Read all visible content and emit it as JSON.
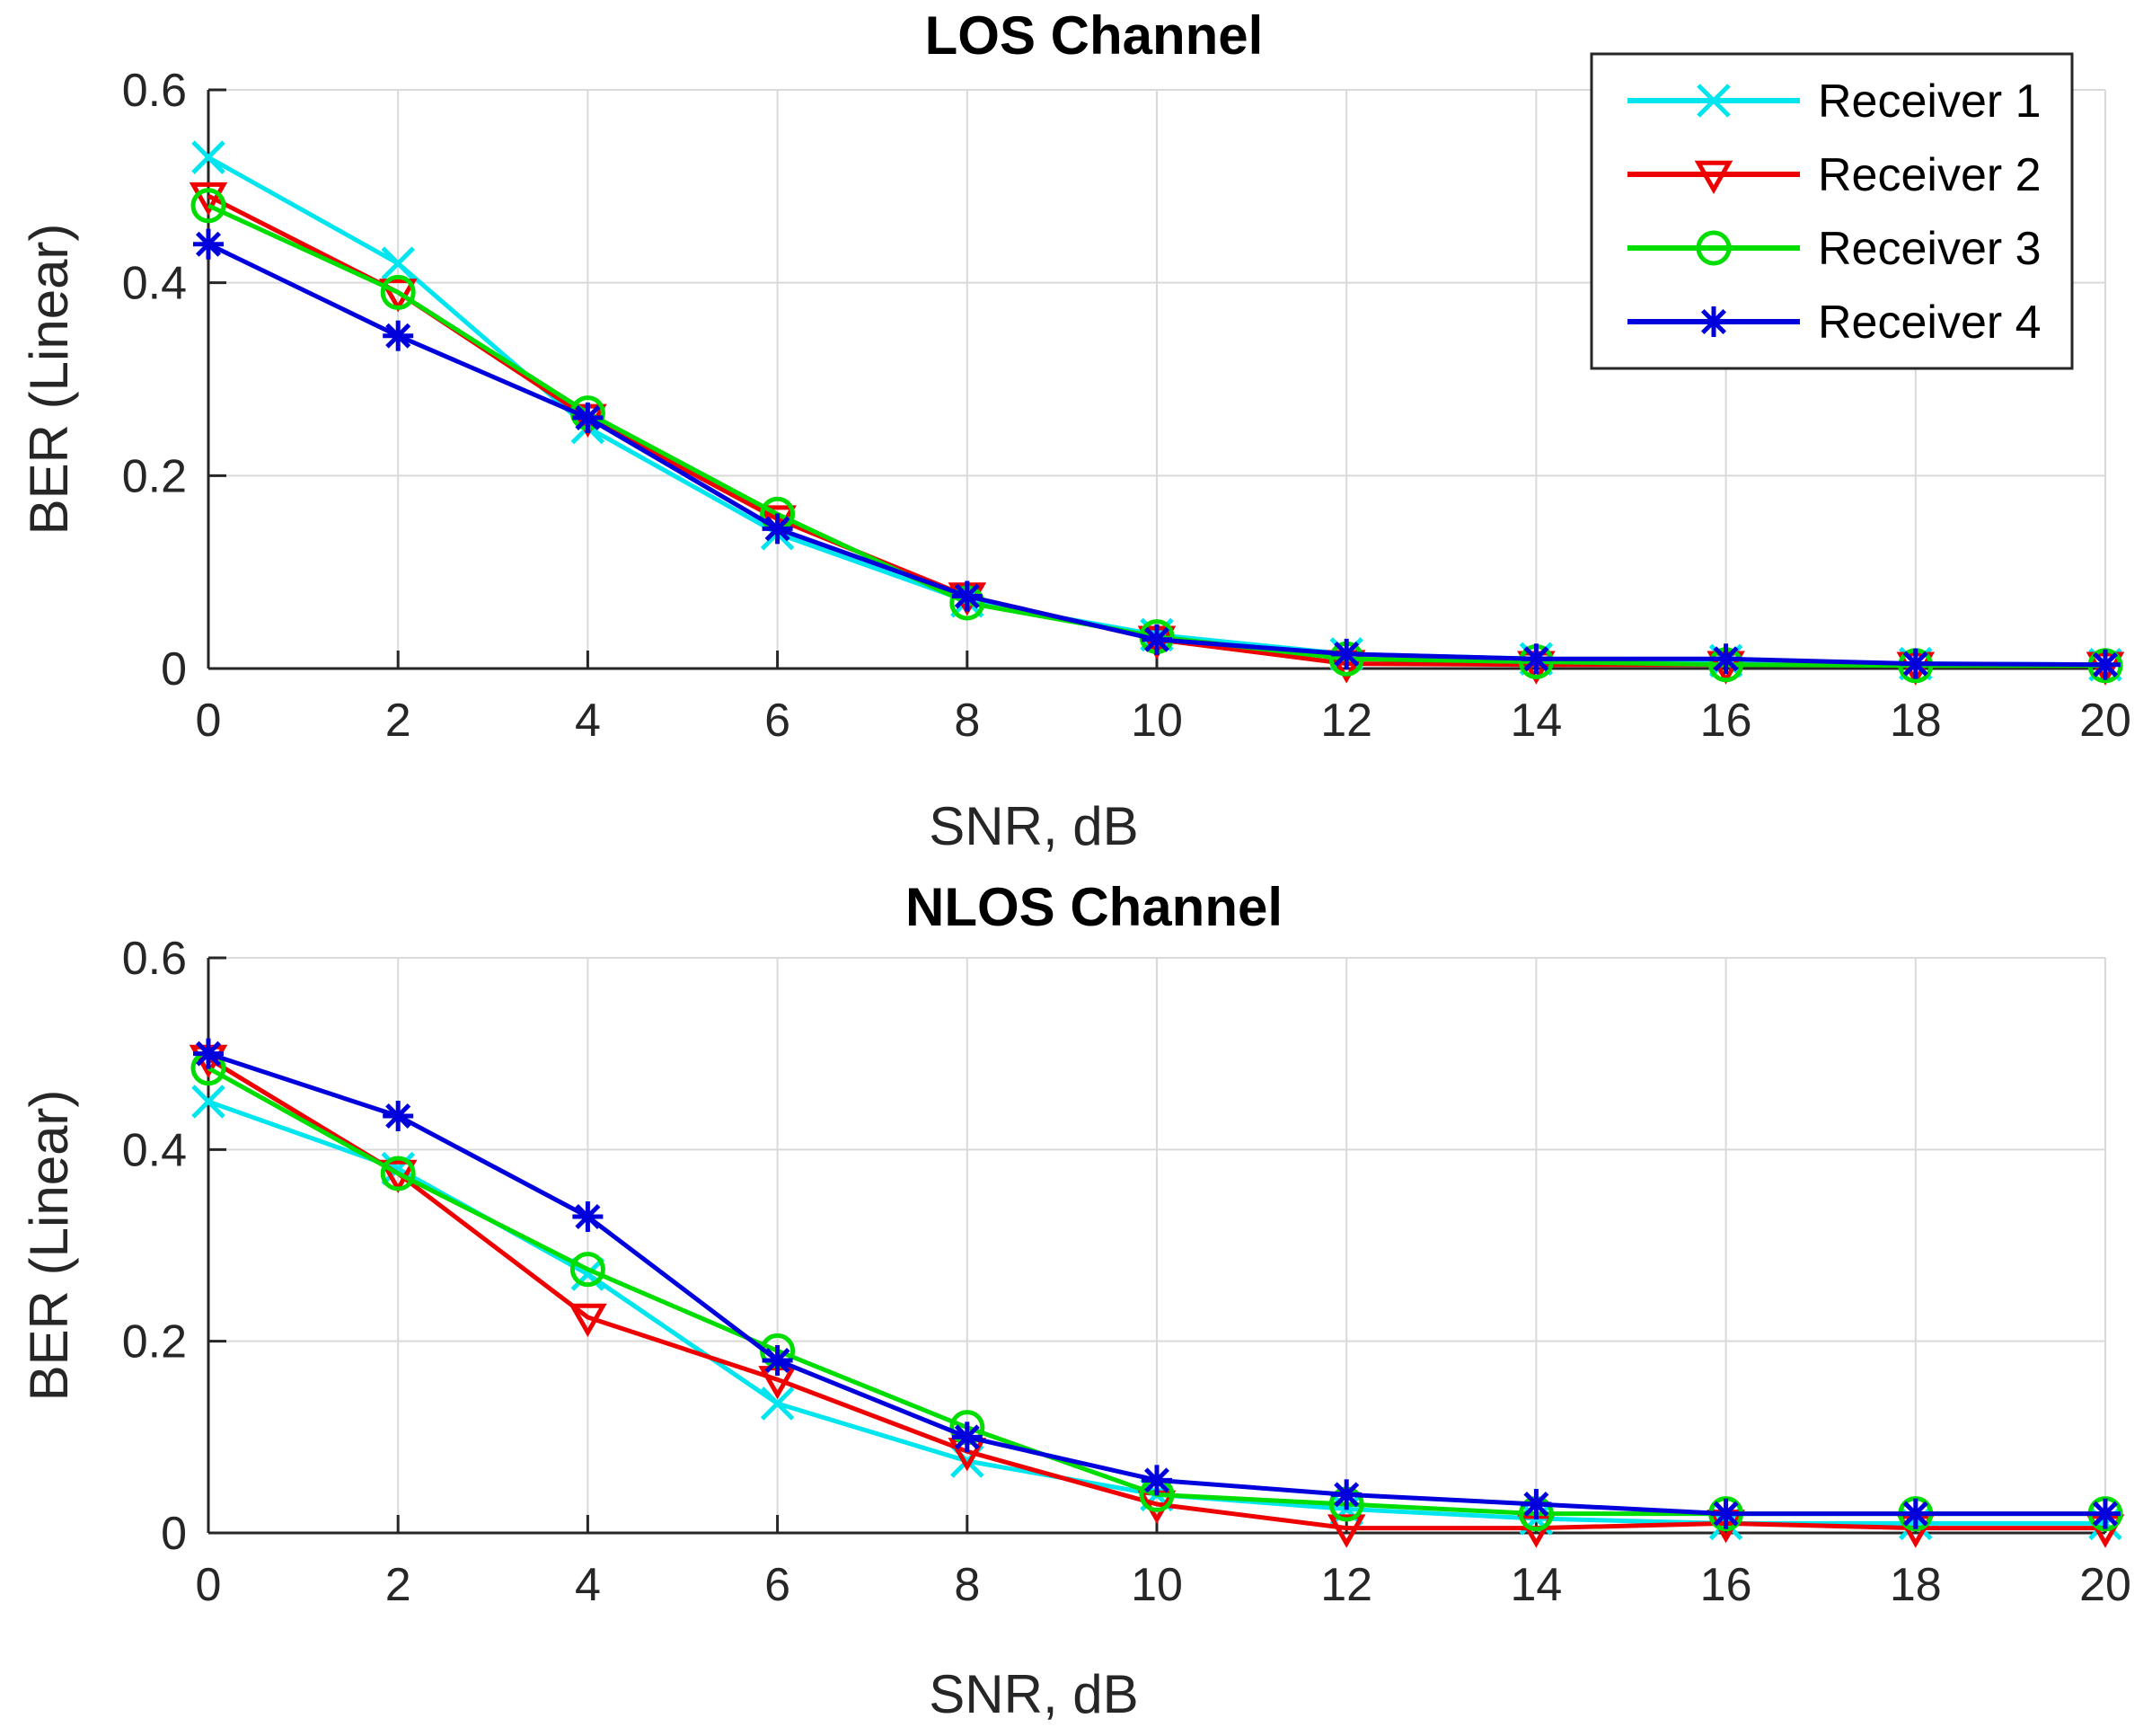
{
  "chart_data": [
    {
      "type": "line",
      "title": "LOS Channel",
      "xlabel": "SNR, dB",
      "ylabel": "BER (Linear)",
      "xlim": [
        0,
        20
      ],
      "ylim": [
        0,
        0.6
      ],
      "xticks": [
        0,
        2,
        4,
        6,
        8,
        10,
        12,
        14,
        16,
        18,
        20
      ],
      "yticks": [
        0,
        0.2,
        0.4,
        0.6
      ],
      "grid": true,
      "legend": "top-right",
      "series": [
        {
          "name": "Receiver 1",
          "color": "#00e5ee",
          "marker": "x",
          "x": [
            0,
            2,
            4,
            6,
            8,
            10,
            12,
            14,
            16,
            18,
            20
          ],
          "values": [
            0.53,
            0.42,
            0.25,
            0.14,
            0.07,
            0.035,
            0.015,
            0.01,
            0.008,
            0.005,
            0.004
          ]
        },
        {
          "name": "Receiver 2",
          "color": "#ee0000",
          "marker": "triangle-down",
          "x": [
            0,
            2,
            4,
            6,
            8,
            10,
            12,
            14,
            16,
            18,
            20
          ],
          "values": [
            0.49,
            0.39,
            0.26,
            0.155,
            0.075,
            0.03,
            0.005,
            0.004,
            0.004,
            0.003,
            0.003
          ]
        },
        {
          "name": "Receiver 3",
          "color": "#00dd00",
          "marker": "circle",
          "x": [
            0,
            2,
            4,
            6,
            8,
            10,
            12,
            14,
            16,
            18,
            20
          ],
          "values": [
            0.48,
            0.39,
            0.265,
            0.16,
            0.068,
            0.033,
            0.01,
            0.007,
            0.004,
            0.003,
            0.003
          ]
        },
        {
          "name": "Receiver 4",
          "color": "#0000dd",
          "marker": "asterisk",
          "x": [
            0,
            2,
            4,
            6,
            8,
            10,
            12,
            14,
            16,
            18,
            20
          ],
          "values": [
            0.44,
            0.345,
            0.26,
            0.145,
            0.075,
            0.03,
            0.015,
            0.01,
            0.01,
            0.005,
            0.004
          ]
        }
      ]
    },
    {
      "type": "line",
      "title": "NLOS Channel",
      "xlabel": "SNR, dB",
      "ylabel": "BER (Linear)",
      "xlim": [
        0,
        20
      ],
      "ylim": [
        0,
        0.6
      ],
      "xticks": [
        0,
        2,
        4,
        6,
        8,
        10,
        12,
        14,
        16,
        18,
        20
      ],
      "yticks": [
        0,
        0.2,
        0.4,
        0.6
      ],
      "grid": true,
      "series": [
        {
          "name": "Receiver 1",
          "color": "#00e5ee",
          "marker": "x",
          "x": [
            0,
            2,
            4,
            6,
            8,
            10,
            12,
            14,
            16,
            18,
            20
          ],
          "values": [
            0.45,
            0.38,
            0.27,
            0.135,
            0.075,
            0.04,
            0.025,
            0.015,
            0.01,
            0.01,
            0.01
          ]
        },
        {
          "name": "Receiver 2",
          "color": "#ee0000",
          "marker": "triangle-down",
          "x": [
            0,
            2,
            4,
            6,
            8,
            10,
            12,
            14,
            16,
            18,
            20
          ],
          "values": [
            0.495,
            0.375,
            0.225,
            0.16,
            0.085,
            0.03,
            0.005,
            0.005,
            0.01,
            0.005,
            0.005
          ]
        },
        {
          "name": "Receiver 3",
          "color": "#00dd00",
          "marker": "circle",
          "x": [
            0,
            2,
            4,
            6,
            8,
            10,
            12,
            14,
            16,
            18,
            20
          ],
          "values": [
            0.485,
            0.375,
            0.275,
            0.19,
            0.11,
            0.04,
            0.03,
            0.02,
            0.02,
            0.02,
            0.02
          ]
        },
        {
          "name": "Receiver 4",
          "color": "#0000dd",
          "marker": "asterisk",
          "x": [
            0,
            2,
            4,
            6,
            8,
            10,
            12,
            14,
            16,
            18,
            20
          ],
          "values": [
            0.5,
            0.435,
            0.33,
            0.18,
            0.1,
            0.055,
            0.04,
            0.03,
            0.02,
            0.02,
            0.02
          ]
        }
      ]
    }
  ]
}
